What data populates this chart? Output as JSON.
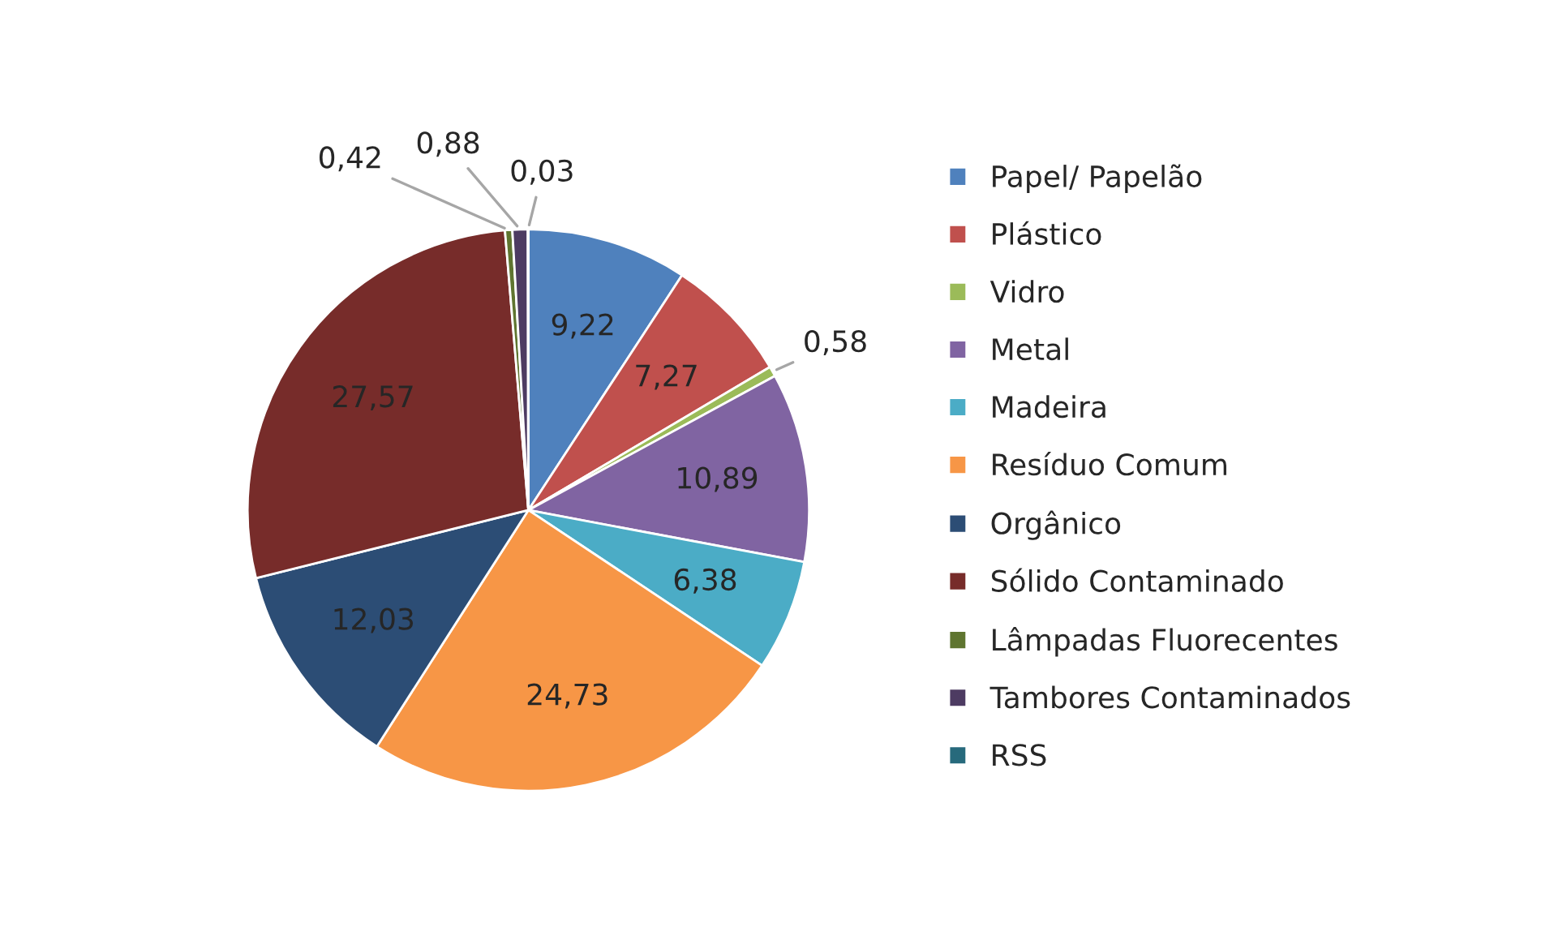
{
  "chart_data": {
    "type": "pie",
    "categories": [
      "Papel/ Papelão",
      "Plástico",
      "Vidro",
      "Metal",
      "Madeira",
      "Resíduo Comum",
      "Orgânico",
      "Sólido Contaminado",
      "Lâmpadas Fluorecentes",
      "Tambores Contaminados",
      "RSS"
    ],
    "values": [
      9.22,
      7.27,
      0.58,
      10.89,
      6.38,
      24.73,
      12.03,
      27.57,
      0.42,
      0.88,
      0.03
    ],
    "value_labels": [
      "9,22",
      "7,27",
      "0,58",
      "10,89",
      "6,38",
      "24,73",
      "12,03",
      "27,57",
      "0,42",
      "0,88",
      "0,03"
    ],
    "colors": [
      "#4f81bd",
      "#c0504d",
      "#9bbb59",
      "#8064a2",
      "#4bacc6",
      "#f79646",
      "#2c4d75",
      "#772c2a",
      "#5f7530",
      "#4d3b62",
      "#276a7c"
    ],
    "legend": "right"
  }
}
